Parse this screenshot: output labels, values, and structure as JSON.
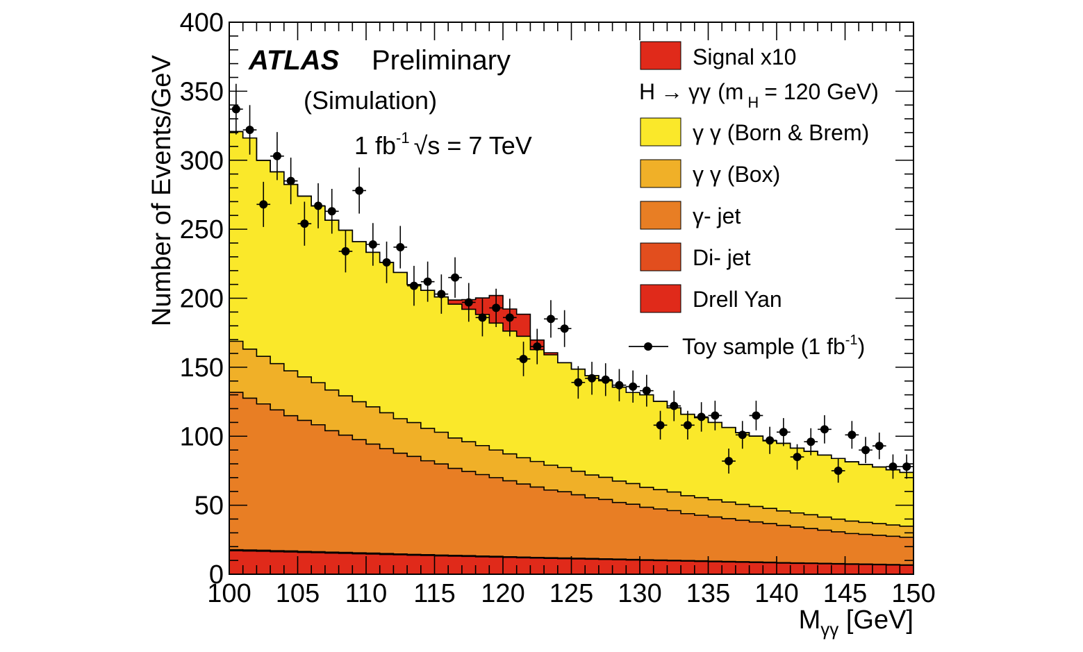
{
  "chart_data": {
    "type": "area",
    "title": "",
    "xlabel": "M",
    "xlabel_sub": "γγ",
    "xlabel_unit": " [GeV]",
    "ylabel": "Number of Events/GeV",
    "xlim": [
      100,
      150
    ],
    "ylim": [
      0,
      400
    ],
    "x_ticks": [
      100,
      105,
      110,
      115,
      120,
      125,
      130,
      135,
      140,
      145,
      150
    ],
    "y_ticks": [
      0,
      50,
      100,
      150,
      200,
      250,
      300,
      350,
      400
    ],
    "grid": false,
    "legend_position": "top-right",
    "annotations": {
      "experiment": "ATLAS",
      "status": "Preliminary",
      "simulation": "(Simulation)",
      "lumi": "1 fb",
      "lumi_exp": "-1",
      "sqrt": "√",
      "energy": "s = 7 TeV"
    },
    "bin_edges": [
      100,
      101,
      102,
      103,
      104,
      105,
      106,
      107,
      108,
      109,
      110,
      111,
      112,
      113,
      114,
      115,
      116,
      117,
      118,
      119,
      120,
      121,
      122,
      123,
      124,
      125,
      126,
      127,
      128,
      129,
      130,
      131,
      132,
      133,
      134,
      135,
      136,
      137,
      138,
      139,
      140,
      141,
      142,
      143,
      144,
      145,
      146,
      147,
      148,
      149,
      150
    ],
    "series": [
      {
        "name": "Drell Yan",
        "color": "#e02a1a",
        "values": [
          17,
          16.8,
          16.6,
          16.3,
          16.1,
          15.8,
          15.6,
          15.3,
          15.1,
          14.8,
          14.6,
          14.3,
          14.1,
          13.8,
          13.6,
          13.3,
          13.1,
          12.9,
          12.6,
          12.4,
          12.2,
          11.9,
          11.7,
          11.5,
          11.3,
          11.1,
          10.9,
          10.7,
          10.5,
          10.3,
          10.1,
          9.9,
          9.7,
          9.5,
          9.3,
          9.1,
          8.9,
          8.7,
          8.5,
          8.3,
          8.1,
          7.9,
          7.8,
          7.6,
          7.4,
          7.2,
          7.1,
          6.9,
          6.7,
          6.5
        ]
      },
      {
        "name": "Di- jet",
        "color": "#e24e1e",
        "values": [
          0.8,
          0.8,
          0.8,
          0.8,
          0.8,
          0.7,
          0.7,
          0.7,
          0.7,
          0.7,
          0.7,
          0.7,
          0.6,
          0.6,
          0.6,
          0.6,
          0.6,
          0.6,
          0.6,
          0.6,
          0.5,
          0.5,
          0.5,
          0.5,
          0.5,
          0.5,
          0.5,
          0.5,
          0.5,
          0.4,
          0.4,
          0.4,
          0.4,
          0.4,
          0.4,
          0.4,
          0.4,
          0.4,
          0.4,
          0.4,
          0.3,
          0.3,
          0.3,
          0.3,
          0.3,
          0.3,
          0.3,
          0.3,
          0.3,
          0.3
        ]
      },
      {
        "name": "γ- jet",
        "color": "#e87e24",
        "values": [
          114,
          110,
          106,
          102,
          98,
          95,
          92,
          88,
          85,
          82,
          79,
          76,
          73,
          71,
          68,
          66,
          63,
          61,
          59,
          57,
          55,
          53,
          51,
          49,
          48,
          46,
          44,
          43,
          41,
          40,
          38,
          37,
          36,
          34,
          33,
          32,
          31,
          30,
          29,
          28,
          27,
          26,
          25,
          24,
          23,
          22,
          21.5,
          21,
          20.5,
          20
        ]
      },
      {
        "name": "γ γ (Box)",
        "color": "#f0b028",
        "values": [
          37,
          35.5,
          34.5,
          33.5,
          32.5,
          31.5,
          30.5,
          29.5,
          28.5,
          27.5,
          27,
          26,
          25,
          24.5,
          23.5,
          23,
          22,
          21.5,
          21,
          20,
          19.5,
          19,
          18.5,
          18,
          17.5,
          17,
          16.5,
          16,
          15.5,
          15,
          14.5,
          14,
          13.5,
          13,
          12.8,
          12.5,
          12,
          11.5,
          11.2,
          11,
          10.5,
          10.2,
          10,
          9.5,
          9.2,
          9,
          8.7,
          8.5,
          8.2,
          8
        ]
      },
      {
        "name": "γ γ (Born & Brem)",
        "color": "#fae82a",
        "values": [
          152,
          153,
          142,
          139,
          135,
          131,
          128,
          123,
          120,
          116,
          112,
          109,
          106,
          100,
          100,
          98,
          97,
          96,
          95,
          92,
          89,
          88,
          81,
          80,
          76,
          74,
          72,
          70,
          68,
          66,
          67,
          64,
          61,
          59,
          58,
          56,
          54,
          52,
          51,
          49,
          49,
          47,
          46,
          45,
          44,
          43,
          42,
          41,
          40,
          39
        ]
      },
      {
        "name": "Signal x10",
        "color": "#e02a1a",
        "values": [
          0,
          0,
          0,
          0,
          0,
          0,
          0,
          0,
          0,
          0,
          0,
          0,
          0,
          0,
          0,
          0,
          3,
          7,
          12,
          20,
          16,
          16,
          7,
          1.5,
          0,
          0,
          0,
          0,
          0,
          0,
          0,
          0,
          0,
          0,
          0,
          0,
          0,
          0,
          0,
          0,
          0,
          0,
          0,
          0,
          0,
          0,
          0,
          0,
          0,
          0
        ]
      }
    ],
    "toy_sample": {
      "name": "Toy sample (1 fb",
      "name_exp": "-1",
      "name_close": ")",
      "x": [
        100.5,
        101.5,
        102.5,
        103.5,
        104.5,
        105.5,
        106.5,
        107.5,
        108.5,
        109.5,
        110.5,
        111.5,
        112.5,
        113.5,
        114.5,
        115.5,
        116.5,
        117.5,
        118.5,
        119.5,
        120.5,
        121.5,
        122.5,
        123.5,
        124.5,
        125.5,
        126.5,
        127.5,
        128.5,
        129.5,
        130.5,
        131.5,
        132.5,
        133.5,
        134.5,
        135.5,
        136.5,
        137.5,
        138.5,
        139.5,
        140.5,
        141.5,
        142.5,
        143.5,
        144.5,
        145.5,
        146.5,
        147.5,
        148.5,
        149.5
      ],
      "y": [
        337,
        322,
        268,
        303,
        285,
        254,
        267,
        263,
        234,
        278,
        239,
        226,
        237,
        209,
        212,
        203,
        215,
        197,
        186,
        193,
        186,
        156,
        165,
        185,
        178,
        139,
        142,
        141,
        137,
        136,
        133,
        108,
        122,
        108,
        114,
        115,
        82,
        101,
        115,
        97,
        103,
        85,
        96,
        105,
        75,
        101,
        90,
        93,
        78,
        78
      ]
    },
    "legend": {
      "signal_label": "Signal x10",
      "higgs_H": "H",
      "higgs_arrow": "→",
      "higgs_gg": "γγ",
      "higgs_paren": "(m",
      "higgs_sub": "H",
      "higgs_mass": "= 120 GeV)"
    }
  }
}
